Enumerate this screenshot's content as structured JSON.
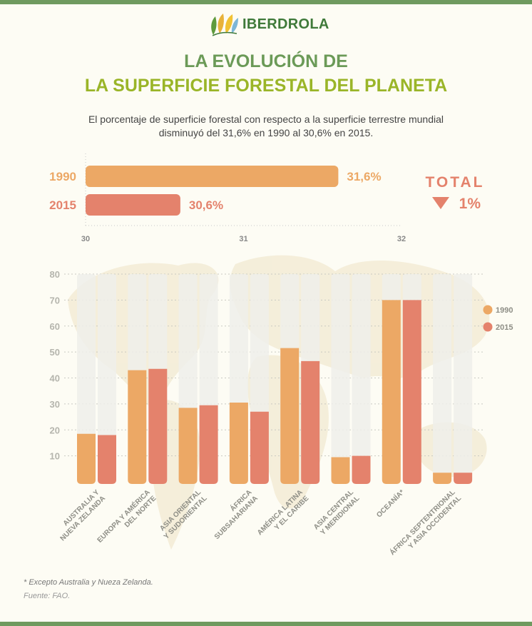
{
  "brand": {
    "name": "IBERDROLA"
  },
  "header": {
    "title_line1": "LA EVOLUCIÓN DE",
    "title_line2": "LA SUPERFICIE FORESTAL DEL PLANETA",
    "subtitle_line1": "El porcentaje de superficie forestal con respecto a la superficie terrestre mundial",
    "subtitle_line2": "disminuyó del 31,6% en 1990 al 30,6% en 2015."
  },
  "total": {
    "label": "TOTAL",
    "change": "1%",
    "direction": "down"
  },
  "colors": {
    "c1990": "#eca865",
    "c2015": "#e4826c",
    "track": "#eeeeea",
    "axis": "#999999"
  },
  "footer": {
    "footnote": "* Excepto Australia y Nueza Zelanda.",
    "source": "Fuente: FAO."
  },
  "chart_data": [
    {
      "type": "bar",
      "orientation": "horizontal",
      "categories": [
        "1990",
        "2015"
      ],
      "values": [
        31.6,
        30.6
      ],
      "value_labels": [
        "31,6%",
        "30,6%"
      ],
      "xlim": [
        30,
        32
      ],
      "xticks": [
        "30",
        "31",
        "32"
      ]
    },
    {
      "type": "bar",
      "categories": [
        [
          "AUSTRALIA Y",
          "NUEVA ZELANDA"
        ],
        [
          "EUROPA Y AMÉRICA",
          "DEL NORTE"
        ],
        [
          "ASIA ORIENTAL",
          "Y SUDORIENTAL"
        ],
        [
          "ÁFRICA",
          "SUBSAHARIANA"
        ],
        [
          "AMÉRICA LATINA",
          "Y EL CARIBE"
        ],
        [
          "ASIA CENTRAL",
          "Y MERIDIONAL"
        ],
        [
          "OCEANÍA*"
        ],
        [
          "ÁFRICA SEPTENTRIONAL",
          "Y ASIA OCCIDENTAL"
        ]
      ],
      "series": [
        {
          "name": "1990",
          "values": [
            18.5,
            43,
            28.5,
            30.5,
            51.5,
            9.5,
            70,
            3.5
          ]
        },
        {
          "name": "2015",
          "values": [
            18,
            43.5,
            29.5,
            27,
            46.5,
            10,
            70,
            3.5
          ]
        }
      ],
      "ylim": [
        0,
        80
      ],
      "yticks": [
        "80",
        "70",
        "60",
        "50",
        "40",
        "30",
        "20",
        "10"
      ],
      "legend": "right"
    }
  ]
}
